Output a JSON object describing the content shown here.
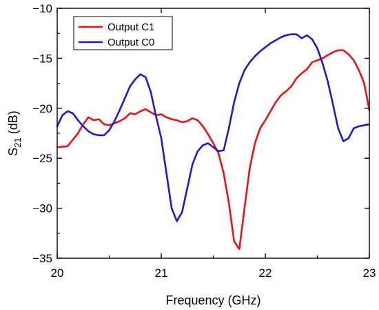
{
  "chart_data": {
    "type": "line",
    "xlabel": "Frequency (GHz)",
    "ylabel": {
      "base": "S",
      "sub": "21",
      "rest": " (dB)"
    },
    "xlim": [
      20,
      23
    ],
    "ylim": [
      -35,
      -10
    ],
    "xticks": [
      20,
      21,
      22,
      23
    ],
    "yticks": [
      -35,
      -30,
      -25,
      -20,
      -15,
      -10
    ],
    "xtick_labels": [
      "20",
      "21",
      "22",
      "23"
    ],
    "ytick_labels": [
      "−35",
      "−30",
      "−25",
      "−20",
      "−15",
      "−10"
    ],
    "grid": false,
    "legend_position": "top-left",
    "series": [
      {
        "name": "Output C1",
        "color": "#ee1111",
        "x": [
          20.0,
          20.1,
          20.2,
          20.25,
          20.3,
          20.35,
          20.4,
          20.45,
          20.5,
          20.6,
          20.65,
          20.7,
          20.75,
          20.8,
          20.85,
          20.9,
          20.95,
          21.0,
          21.05,
          21.1,
          21.15,
          21.2,
          21.25,
          21.3,
          21.35,
          21.4,
          21.45,
          21.5,
          21.55,
          21.6,
          21.65,
          21.7,
          21.75,
          21.8,
          21.85,
          21.9,
          21.95,
          22.0,
          22.05,
          22.1,
          22.15,
          22.2,
          22.25,
          22.3,
          22.35,
          22.4,
          22.45,
          22.5,
          22.55,
          22.6,
          22.65,
          22.7,
          22.75,
          22.8,
          22.85,
          22.9,
          22.95,
          23.0
        ],
        "y": [
          -23.9,
          -23.8,
          -22.5,
          -21.6,
          -20.9,
          -21.2,
          -21.1,
          -21.6,
          -21.7,
          -21.3,
          -21.0,
          -20.5,
          -20.6,
          -20.3,
          -20.1,
          -20.4,
          -20.7,
          -20.6,
          -20.9,
          -21.1,
          -21.2,
          -21.4,
          -21.3,
          -21.0,
          -21.2,
          -21.8,
          -22.6,
          -23.5,
          -24.5,
          -26.5,
          -29.5,
          -33.3,
          -34.1,
          -30.0,
          -26.0,
          -23.5,
          -22.0,
          -21.2,
          -20.3,
          -19.4,
          -18.7,
          -18.3,
          -17.8,
          -17.0,
          -16.5,
          -16.1,
          -15.4,
          -15.2,
          -15.0,
          -14.7,
          -14.4,
          -14.2,
          -14.2,
          -14.6,
          -15.2,
          -16.2,
          -17.5,
          -20.2
        ]
      },
      {
        "name": "Output C0",
        "color": "#1a1ad6",
        "x": [
          20.0,
          20.05,
          20.1,
          20.15,
          20.2,
          20.25,
          20.3,
          20.35,
          20.4,
          20.45,
          20.5,
          20.55,
          20.6,
          20.65,
          20.7,
          20.75,
          20.8,
          20.85,
          20.9,
          20.95,
          21.0,
          21.05,
          21.1,
          21.15,
          21.2,
          21.25,
          21.3,
          21.35,
          21.4,
          21.45,
          21.5,
          21.55,
          21.6,
          21.65,
          21.7,
          21.75,
          21.8,
          21.85,
          21.9,
          21.95,
          22.0,
          22.05,
          22.1,
          22.15,
          22.2,
          22.25,
          22.3,
          22.35,
          22.4,
          22.45,
          22.5,
          22.55,
          22.6,
          22.65,
          22.7,
          22.75,
          22.8,
          22.85,
          22.9,
          22.95,
          23.0
        ],
        "y": [
          -21.8,
          -20.7,
          -20.3,
          -20.5,
          -21.2,
          -21.8,
          -22.3,
          -22.6,
          -22.7,
          -22.7,
          -22.2,
          -21.3,
          -20.2,
          -19.0,
          -17.8,
          -17.1,
          -16.6,
          -16.9,
          -18.4,
          -20.8,
          -23.0,
          -26.5,
          -30.0,
          -31.3,
          -30.4,
          -28.0,
          -25.6,
          -24.3,
          -23.7,
          -23.5,
          -23.9,
          -24.3,
          -24.2,
          -22.0,
          -19.4,
          -17.5,
          -16.2,
          -15.4,
          -14.8,
          -14.3,
          -13.9,
          -13.5,
          -13.2,
          -12.9,
          -12.7,
          -12.6,
          -12.6,
          -13.0,
          -12.7,
          -13.1,
          -14.0,
          -15.5,
          -17.3,
          -19.6,
          -22.0,
          -23.3,
          -23.0,
          -22.0,
          -21.8,
          -21.7,
          -21.6
        ]
      }
    ]
  }
}
